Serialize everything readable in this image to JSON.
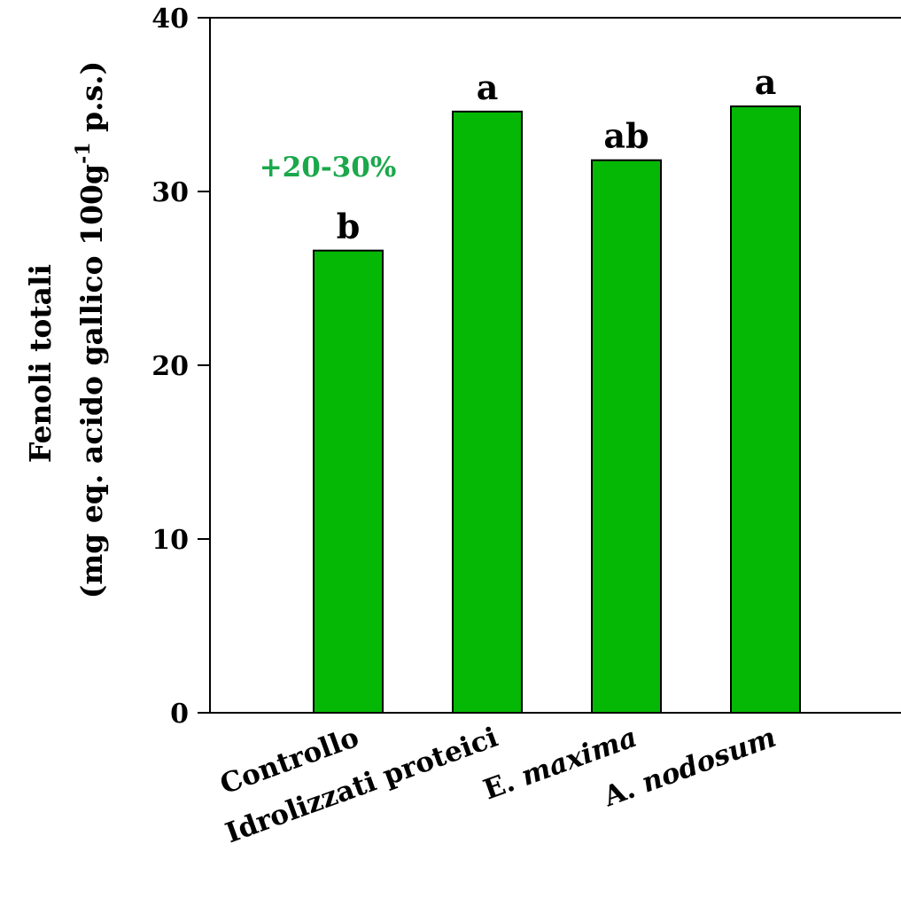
{
  "chart_data": {
    "type": "bar",
    "categories": [
      "Controllo",
      "Idrolizzati proteici",
      "E. maxima",
      "A. nodosum"
    ],
    "category_italic": [
      {
        "plain": "Controllo",
        "italic": ""
      },
      {
        "plain": "Idrolizzati proteici",
        "italic": ""
      },
      {
        "plain": "E. ",
        "italic": "maxima"
      },
      {
        "plain": "A. ",
        "italic": "nodosum"
      }
    ],
    "values": [
      26.6,
      34.6,
      31.8,
      34.9
    ],
    "significance": [
      "b",
      "a",
      "ab",
      "a"
    ],
    "ylabel_line1": "Fenoli totali",
    "ylabel_line2_pre": "(mg eq. acido gallico 100g",
    "ylabel_line2_sup": "-1",
    "ylabel_line2_post": " p.s.)",
    "ylim": [
      0,
      40
    ],
    "yticks": [
      "0",
      "10",
      "20",
      "30",
      "40"
    ],
    "annotation": "+20-30%",
    "bar_color": "#05b805",
    "annotation_color": "#1aa84a",
    "grid": false,
    "legend": "none"
  }
}
